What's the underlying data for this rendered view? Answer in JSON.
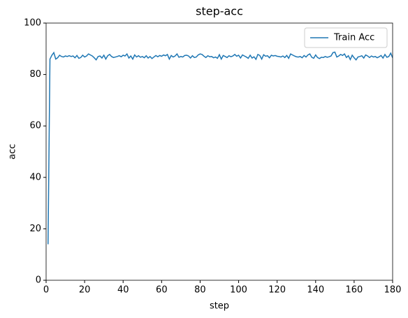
{
  "chart_data": {
    "type": "line",
    "title": "step-acc",
    "x_label": "step",
    "y_label": "acc",
    "x": [
      1,
      2,
      3,
      4,
      5,
      6,
      7,
      8,
      9,
      10,
      11,
      12,
      13,
      14,
      15,
      16,
      17,
      18,
      19,
      20,
      21,
      22,
      23,
      24,
      25,
      26,
      27,
      28,
      29,
      30,
      31,
      32,
      33,
      34,
      35,
      36,
      37,
      38,
      39,
      40,
      41,
      42,
      43,
      44,
      45,
      46,
      47,
      48,
      49,
      50,
      51,
      52,
      53,
      54,
      55,
      56,
      57,
      58,
      59,
      60,
      61,
      62,
      63,
      64,
      65,
      66,
      67,
      68,
      69,
      70,
      71,
      72,
      73,
      74,
      75,
      76,
      77,
      78,
      79,
      80,
      81,
      82,
      83,
      84,
      85,
      86,
      87,
      88,
      89,
      90,
      91,
      92,
      93,
      94,
      95,
      96,
      97,
      98,
      99,
      100,
      101,
      102,
      103,
      104,
      105,
      106,
      107,
      108,
      109,
      110,
      111,
      112,
      113,
      114,
      115,
      116,
      117,
      118,
      119,
      120,
      121,
      122,
      123,
      124,
      125,
      126,
      127,
      128,
      129,
      130,
      131,
      132,
      133,
      134,
      135,
      136,
      137,
      138,
      139,
      140,
      141,
      142,
      143,
      144,
      145,
      146,
      147,
      148,
      149,
      150,
      151,
      152,
      153,
      154,
      155,
      156,
      157,
      158,
      159,
      160,
      161,
      162,
      163,
      164,
      165,
      166,
      167,
      168,
      169,
      170,
      171,
      172,
      173,
      174,
      175,
      176,
      177,
      178,
      179,
      180
    ],
    "series": [
      {
        "name": "Train Acc",
        "color": "#1f77b4",
        "values": [
          14,
          86,
          87.5,
          88.5,
          86,
          86.5,
          87.5,
          87,
          86.8,
          87.2,
          87,
          87.3,
          87,
          87.2,
          86.5,
          87.4,
          86.3,
          86.6,
          87.5,
          86.8,
          87.2,
          88,
          87.6,
          87.2,
          86.5,
          85.7,
          87,
          87.2,
          86.4,
          87.5,
          86,
          87.3,
          87.8,
          87,
          86.6,
          86.8,
          87,
          87.3,
          86.9,
          87.5,
          87.2,
          88,
          86.4,
          87.2,
          86,
          87.6,
          86.8,
          87.3,
          86.7,
          87,
          86.5,
          87.3,
          86.4,
          87,
          86.2,
          86.8,
          87.4,
          86.9,
          87.4,
          87.1,
          87.6,
          87.3,
          87.8,
          86,
          87.4,
          86.8,
          87.2,
          88,
          86.7,
          87,
          86.8,
          87.4,
          87.5,
          87.2,
          86.4,
          87.3,
          86.6,
          86.8,
          87.6,
          88,
          87.8,
          87.1,
          86.6,
          87.3,
          86.9,
          87,
          86.5,
          86.8,
          86.3,
          87.7,
          86,
          87.4,
          87,
          86.6,
          87.3,
          86.9,
          87.2,
          87.8,
          87.1,
          87.5,
          86.4,
          87.6,
          87.2,
          86.8,
          86.3,
          87.5,
          86.4,
          86.9,
          85.9,
          87.8,
          87.4,
          86,
          87.7,
          87.1,
          87.3,
          86.5,
          87.5,
          87.2,
          87.4,
          87.1,
          87,
          86.8,
          87.2,
          86.6,
          87.4,
          86.3,
          88,
          87.6,
          87.2,
          86.9,
          86.8,
          87,
          86.5,
          87.4,
          86.8,
          87.6,
          88,
          86.7,
          86.3,
          87.6,
          86.6,
          86.2,
          86.7,
          86.6,
          87,
          86.7,
          86.9,
          87.2,
          88.5,
          88.7,
          86.8,
          87.2,
          87.8,
          87.4,
          88,
          86.6,
          87.3,
          85.8,
          87.5,
          86.5,
          85.7,
          86.8,
          87,
          87.3,
          86.4,
          87.6,
          87.2,
          86.6,
          87.2,
          86.8,
          87,
          86.5,
          86.9,
          87.4,
          86.4,
          87.8,
          86.7,
          87,
          88.3,
          86.5
        ]
      }
    ],
    "xlim": [
      0,
      180
    ],
    "ylim": [
      0,
      100
    ],
    "xticks": [
      0,
      20,
      40,
      60,
      80,
      100,
      120,
      140,
      160,
      180
    ],
    "yticks": [
      0,
      20,
      40,
      60,
      80,
      100
    ],
    "grid": false,
    "legend": "upper right"
  }
}
